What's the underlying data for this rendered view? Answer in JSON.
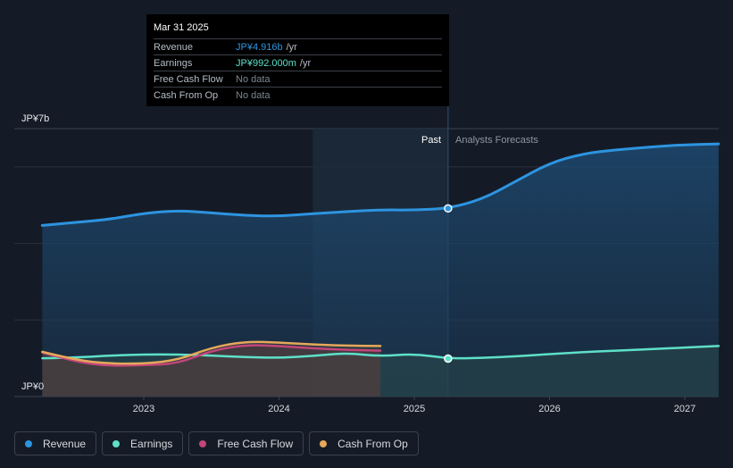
{
  "chart_data": {
    "type": "area",
    "currency_axis": {
      "top_label": "JP¥7b",
      "bottom_label": "JP¥0",
      "ylim": [
        0,
        7
      ]
    },
    "x_ticks": [
      "2023",
      "2024",
      "2025",
      "2026",
      "2027"
    ],
    "xlim": [
      2022.2,
      2027.25
    ],
    "past_label": "Past",
    "forecast_label": "Analysts Forecasts",
    "divider_x": 2025.25,
    "shade_start_x": 2024.25,
    "series": [
      {
        "name": "Revenue",
        "color": "#2d94e0",
        "unit": "JP¥b",
        "points": [
          [
            2022.25,
            4.47
          ],
          [
            2022.5,
            4.55
          ],
          [
            2022.75,
            4.63
          ],
          [
            2023.0,
            4.79
          ],
          [
            2023.25,
            4.86
          ],
          [
            2023.5,
            4.8
          ],
          [
            2023.75,
            4.73
          ],
          [
            2024.0,
            4.71
          ],
          [
            2024.25,
            4.78
          ],
          [
            2024.5,
            4.83
          ],
          [
            2024.75,
            4.88
          ],
          [
            2025.0,
            4.87
          ],
          [
            2025.25,
            4.916
          ],
          [
            2025.5,
            5.15
          ],
          [
            2025.75,
            5.62
          ],
          [
            2026.0,
            6.1
          ],
          [
            2026.25,
            6.35
          ],
          [
            2026.5,
            6.45
          ],
          [
            2026.75,
            6.52
          ],
          [
            2027.0,
            6.58
          ],
          [
            2027.25,
            6.6
          ]
        ]
      },
      {
        "name": "Earnings",
        "color": "#5ee0c9",
        "unit": "JP¥b",
        "points": [
          [
            2022.25,
            1.0
          ],
          [
            2022.5,
            1.02
          ],
          [
            2022.75,
            1.07
          ],
          [
            2023.0,
            1.1
          ],
          [
            2023.25,
            1.1
          ],
          [
            2023.5,
            1.07
          ],
          [
            2023.75,
            1.03
          ],
          [
            2024.0,
            1.01
          ],
          [
            2024.25,
            1.06
          ],
          [
            2024.5,
            1.14
          ],
          [
            2024.75,
            1.05
          ],
          [
            2025.0,
            1.12
          ],
          [
            2025.25,
            0.992
          ],
          [
            2025.5,
            1.01
          ],
          [
            2025.75,
            1.05
          ],
          [
            2026.0,
            1.11
          ],
          [
            2026.25,
            1.16
          ],
          [
            2026.5,
            1.2
          ],
          [
            2026.75,
            1.24
          ],
          [
            2027.0,
            1.28
          ],
          [
            2027.25,
            1.32
          ]
        ]
      },
      {
        "name": "Free Cash Flow",
        "color": "#c2467a",
        "unit": "JP¥b",
        "points": [
          [
            2022.25,
            1.15
          ],
          [
            2022.5,
            0.9
          ],
          [
            2022.75,
            0.8
          ],
          [
            2023.0,
            0.82
          ],
          [
            2023.25,
            0.86
          ],
          [
            2023.5,
            1.2
          ],
          [
            2023.75,
            1.35
          ],
          [
            2024.0,
            1.32
          ],
          [
            2024.25,
            1.26
          ],
          [
            2024.5,
            1.22
          ],
          [
            2024.75,
            1.2
          ]
        ]
      },
      {
        "name": "Cash From Op",
        "color": "#e5a85a",
        "unit": "JP¥b",
        "points": [
          [
            2022.25,
            1.17
          ],
          [
            2022.5,
            0.95
          ],
          [
            2022.75,
            0.86
          ],
          [
            2023.0,
            0.86
          ],
          [
            2023.25,
            0.95
          ],
          [
            2023.5,
            1.28
          ],
          [
            2023.75,
            1.44
          ],
          [
            2024.0,
            1.41
          ],
          [
            2024.25,
            1.36
          ],
          [
            2024.5,
            1.33
          ],
          [
            2024.75,
            1.32
          ]
        ]
      }
    ]
  },
  "tooltip": {
    "date": "Mar 31 2025",
    "rows": [
      {
        "label": "Revenue",
        "value": "JP¥4.916b",
        "unit": "/yr",
        "color": "#2d94e0"
      },
      {
        "label": "Earnings",
        "value": "JP¥992.000m",
        "unit": "/yr",
        "color": "#5ee0c9"
      },
      {
        "label": "Free Cash Flow",
        "value": "No data",
        "unit": "",
        "color": "#7d8591"
      },
      {
        "label": "Cash From Op",
        "value": "No data",
        "unit": "",
        "color": "#7d8591"
      }
    ]
  },
  "legend": [
    {
      "label": "Revenue",
      "color": "#2d94e0"
    },
    {
      "label": "Earnings",
      "color": "#5ee0c9"
    },
    {
      "label": "Free Cash Flow",
      "color": "#c2467a"
    },
    {
      "label": "Cash From Op",
      "color": "#e5a85a"
    }
  ]
}
